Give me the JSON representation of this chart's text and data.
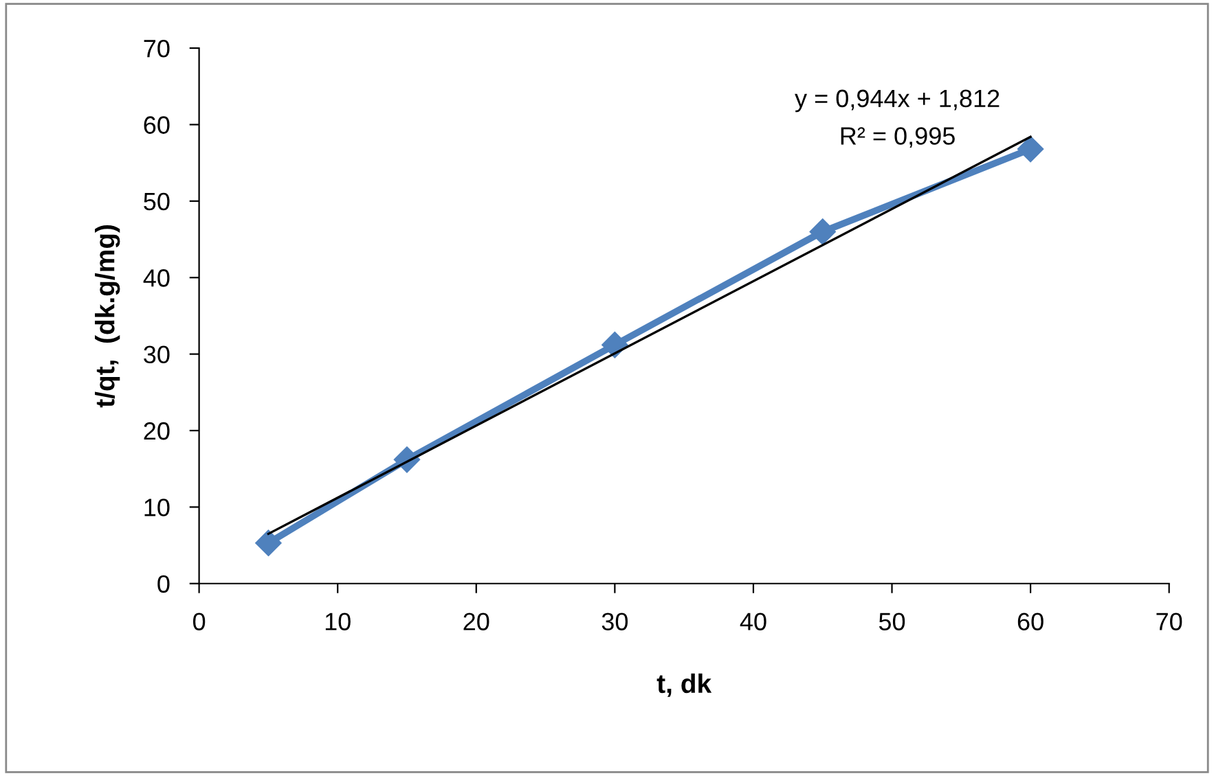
{
  "chart_data": {
    "type": "line",
    "xlabel": "t, dk",
    "ylabel": "t/qt,  (dk.g/mg)",
    "series": [
      {
        "color": "#4f81bd",
        "marker": "diamond",
        "x": [
          5,
          15,
          30,
          45,
          60
        ],
        "values": [
          5.3,
          16.2,
          31.2,
          46.0,
          56.8
        ]
      },
      {
        "type": "line",
        "color": "#000000",
        "marker": "none",
        "x": [
          5,
          60
        ],
        "values": [
          6.5,
          58.4
        ]
      }
    ],
    "xlim": [
      0,
      70
    ],
    "xticks": [
      0,
      10,
      20,
      30,
      40,
      50,
      60,
      70
    ],
    "ylim": [
      0,
      70
    ],
    "yticks": [
      0,
      10,
      20,
      30,
      40,
      50,
      60,
      70
    ],
    "grid": false,
    "legend": false,
    "annotations": [
      "y = 0,944x + 1,812",
      "R² = 0,995"
    ]
  }
}
